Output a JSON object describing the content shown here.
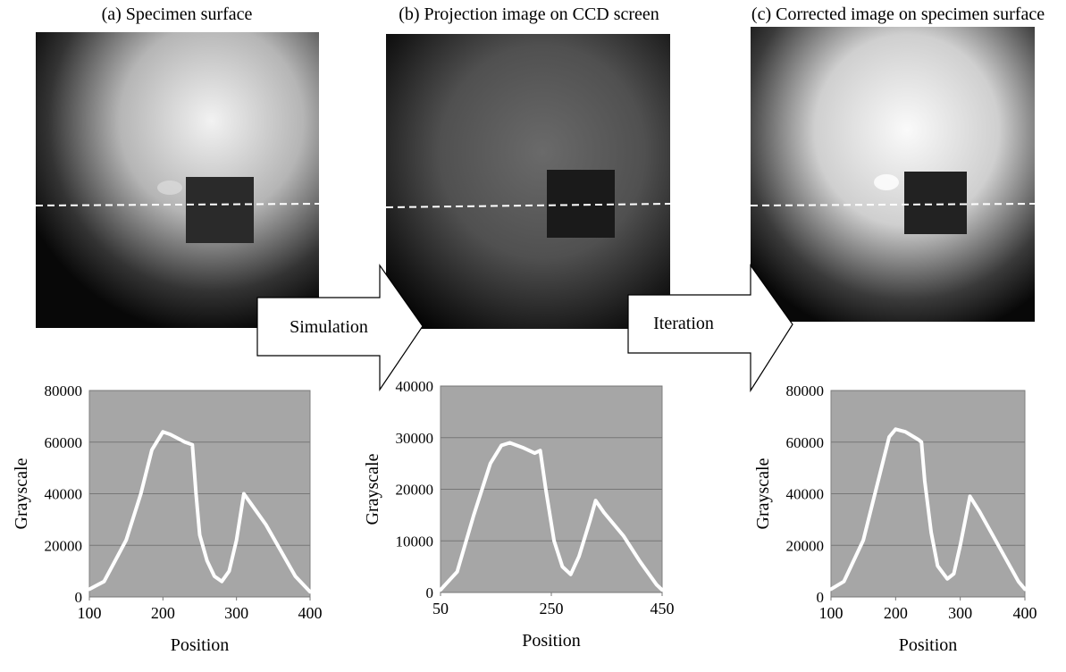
{
  "panels": [
    {
      "caption": "(a) Specimen surface"
    },
    {
      "caption": "(b) Projection image on CCD screen"
    },
    {
      "caption": "(c) Corrected image on specimen surface"
    }
  ],
  "arrows": [
    "Simulation",
    "Iteration"
  ],
  "chart_data": [
    {
      "type": "line",
      "xlabel": "Position",
      "ylabel": "Grayscale",
      "x": [
        100,
        120,
        150,
        170,
        185,
        200,
        210,
        230,
        240,
        245,
        250,
        260,
        270,
        280,
        290,
        300,
        310,
        320,
        340,
        360,
        380,
        400
      ],
      "series": [
        {
          "color": "#ffffff",
          "values": [
            3000,
            6000,
            22000,
            40000,
            57000,
            64000,
            63000,
            60000,
            59000,
            40000,
            24000,
            14000,
            8000,
            6000,
            10000,
            22000,
            40000,
            36000,
            28000,
            18000,
            8000,
            2000
          ]
        }
      ],
      "xlim": [
        100,
        400
      ],
      "xticks": [
        100,
        200,
        300,
        400
      ],
      "ylim": [
        0,
        80000
      ],
      "yticks": [
        0,
        20000,
        40000,
        60000,
        80000
      ],
      "grid": true
    },
    {
      "type": "line",
      "xlabel": "Position",
      "ylabel": "Grayscale",
      "x": [
        50,
        80,
        110,
        140,
        160,
        175,
        200,
        220,
        230,
        240,
        255,
        270,
        285,
        300,
        320,
        330,
        345,
        380,
        410,
        440,
        450
      ],
      "series": [
        {
          "color": "#ffffff",
          "values": [
            500,
            4000,
            15000,
            25000,
            28500,
            29000,
            28000,
            27000,
            27500,
            20000,
            10000,
            5000,
            3500,
            7000,
            14000,
            17800,
            15500,
            11000,
            6000,
            1500,
            500
          ]
        }
      ],
      "xlim": [
        50,
        450
      ],
      "xticks": [
        50,
        250,
        450
      ],
      "ylim": [
        0,
        40000
      ],
      "yticks": [
        0,
        10000,
        20000,
        30000,
        40000
      ],
      "grid": true
    },
    {
      "type": "line",
      "xlabel": "Position",
      "ylabel": "Grayscale",
      "x": [
        100,
        120,
        150,
        170,
        190,
        200,
        215,
        235,
        240,
        245,
        255,
        265,
        280,
        290,
        300,
        315,
        330,
        350,
        370,
        390,
        400
      ],
      "series": [
        {
          "color": "#ffffff",
          "values": [
            3000,
            6000,
            22000,
            42000,
            62000,
            65000,
            64000,
            61000,
            60000,
            45000,
            25000,
            12000,
            7000,
            9000,
            20000,
            39000,
            33000,
            24000,
            15000,
            6000,
            3000
          ]
        }
      ],
      "xlim": [
        100,
        400
      ],
      "xticks": [
        100,
        200,
        300,
        400
      ],
      "ylim": [
        0,
        80000
      ],
      "yticks": [
        0,
        20000,
        40000,
        60000,
        80000
      ],
      "grid": true
    }
  ]
}
